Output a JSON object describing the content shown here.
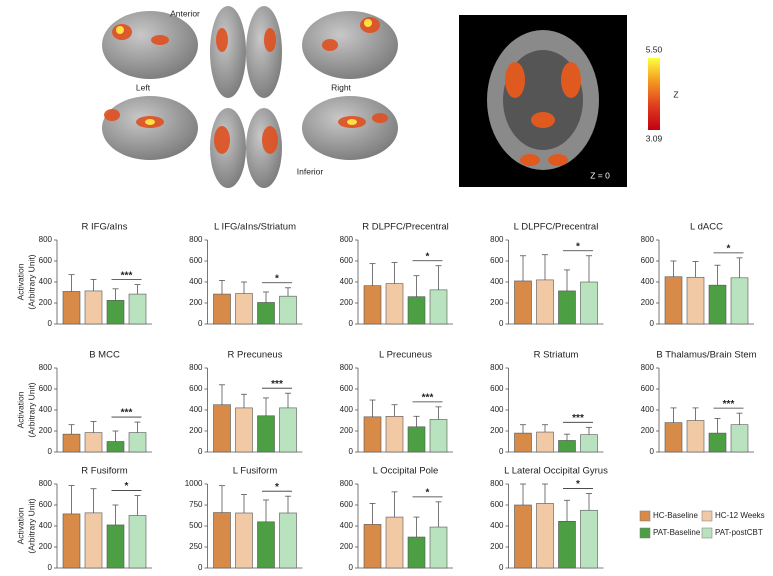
{
  "brain_labels": {
    "top": "Anterior",
    "left": "Left",
    "right": "Right",
    "bottom": "Inferior"
  },
  "inset_label": "Z = 0",
  "colorbar": {
    "max_label": "5.50",
    "min_label": "3.09",
    "label": "Z"
  },
  "y_axis_label": [
    "Activation",
    "(Arbitrary Unit)"
  ],
  "legend": [
    {
      "name": "HC-Baseline",
      "color": "#d88a48"
    },
    {
      "name": "HC-12 Weeks",
      "color": "#f2c9a5"
    },
    {
      "name": "PAT-Baseline",
      "color": "#4ca043"
    },
    {
      "name": "PAT-postCBT",
      "color": "#b9e2bf"
    }
  ],
  "chart_data": [
    {
      "type": "bar",
      "title": "R IFG/aIns",
      "categories": [
        null,
        null,
        null,
        null
      ],
      "values": [
        310,
        315,
        225,
        285
      ],
      "errors": [
        160,
        110,
        110,
        90
      ],
      "annotation": "***",
      "ylim": [
        0,
        800
      ],
      "yticks": [
        0,
        200,
        400,
        600,
        800
      ]
    },
    {
      "type": "bar",
      "title": "L IFG/aIns/Striatum",
      "categories": [
        null,
        null,
        null,
        null
      ],
      "values": [
        285,
        290,
        205,
        265
      ],
      "errors": [
        130,
        110,
        100,
        80
      ],
      "annotation": "*",
      "ylim": [
        0,
        800
      ],
      "yticks": [
        0,
        200,
        400,
        600,
        800
      ]
    },
    {
      "type": "bar",
      "title": "R DLPFC/Precentral",
      "categories": [
        null,
        null,
        null,
        null
      ],
      "values": [
        365,
        385,
        260,
        325
      ],
      "errors": [
        210,
        200,
        200,
        230
      ],
      "annotation": "*",
      "ylim": [
        0,
        800
      ],
      "yticks": [
        0,
        200,
        400,
        600,
        800
      ]
    },
    {
      "type": "bar",
      "title": "L DLPFC/Precentral",
      "categories": [
        null,
        null,
        null,
        null
      ],
      "values": [
        410,
        420,
        315,
        400
      ],
      "errors": [
        240,
        240,
        200,
        250
      ],
      "annotation": "*",
      "ylim": [
        0,
        800
      ],
      "yticks": [
        0,
        200,
        400,
        600,
        800
      ]
    },
    {
      "type": "bar",
      "title": "L dACC",
      "categories": [
        null,
        null,
        null,
        null
      ],
      "values": [
        450,
        445,
        370,
        440
      ],
      "errors": [
        150,
        150,
        190,
        190
      ],
      "annotation": "*",
      "ylim": [
        0,
        800
      ],
      "yticks": [
        0,
        200,
        400,
        600,
        800
      ]
    },
    {
      "type": "bar",
      "title": "B MCC",
      "categories": [
        null,
        null,
        null,
        null
      ],
      "values": [
        170,
        185,
        100,
        185
      ],
      "errors": [
        90,
        105,
        100,
        100
      ],
      "annotation": "***",
      "ylim": [
        0,
        800
      ],
      "yticks": [
        0,
        200,
        400,
        600,
        800
      ]
    },
    {
      "type": "bar",
      "title": "R Precuneus",
      "categories": [
        null,
        null,
        null,
        null
      ],
      "values": [
        450,
        420,
        345,
        420
      ],
      "errors": [
        190,
        130,
        170,
        140
      ],
      "annotation": "***",
      "ylim": [
        0,
        800
      ],
      "yticks": [
        0,
        200,
        400,
        600,
        800
      ]
    },
    {
      "type": "bar",
      "title": "L Precuneus",
      "categories": [
        null,
        null,
        null,
        null
      ],
      "values": [
        335,
        340,
        240,
        310
      ],
      "errors": [
        160,
        110,
        100,
        120
      ],
      "annotation": "***",
      "ylim": [
        0,
        800
      ],
      "yticks": [
        0,
        200,
        400,
        600,
        800
      ]
    },
    {
      "type": "bar",
      "title": "R Striatum",
      "categories": [
        null,
        null,
        null,
        null
      ],
      "values": [
        180,
        190,
        110,
        165
      ],
      "errors": [
        80,
        70,
        60,
        70
      ],
      "annotation": "***",
      "ylim": [
        0,
        800
      ],
      "yticks": [
        0,
        200,
        400,
        600,
        800
      ]
    },
    {
      "type": "bar",
      "title": "B Thalamus/Brain Stem",
      "categories": [
        null,
        null,
        null,
        null
      ],
      "values": [
        280,
        300,
        180,
        260
      ],
      "errors": [
        140,
        120,
        140,
        110
      ],
      "annotation": "***",
      "ylim": [
        0,
        800
      ],
      "yticks": [
        0,
        200,
        400,
        600,
        800
      ]
    },
    {
      "type": "bar",
      "title": "R Fusiform",
      "categories": [
        null,
        null,
        null,
        null
      ],
      "values": [
        515,
        525,
        410,
        500
      ],
      "errors": [
        270,
        230,
        190,
        190
      ],
      "annotation": "*",
      "ylim": [
        0,
        800
      ],
      "yticks": [
        0,
        200,
        400,
        600,
        800
      ]
    },
    {
      "type": "bar",
      "title": "L Fusiform",
      "categories": [
        null,
        null,
        null,
        null
      ],
      "values": [
        660,
        655,
        550,
        655
      ],
      "errors": [
        320,
        220,
        260,
        200
      ],
      "annotation": "*",
      "ylim": [
        0,
        1000
      ],
      "yticks": [
        0,
        250,
        500,
        750,
        1000
      ]
    },
    {
      "type": "bar",
      "title": "L Occipital Pole",
      "categories": [
        null,
        null,
        null,
        null
      ],
      "values": [
        415,
        485,
        295,
        390
      ],
      "errors": [
        200,
        240,
        190,
        240
      ],
      "annotation": "*",
      "ylim": [
        0,
        800
      ],
      "yticks": [
        0,
        200,
        400,
        600,
        800
      ]
    },
    {
      "type": "bar",
      "title": "L Lateral Occipital Gyrus",
      "categories": [
        null,
        null,
        null,
        null
      ],
      "values": [
        600,
        615,
        445,
        550
      ],
      "errors": [
        200,
        185,
        200,
        160
      ],
      "annotation": "*",
      "ylim": [
        0,
        800
      ],
      "yticks": [
        0,
        200,
        400,
        600,
        800
      ]
    }
  ]
}
